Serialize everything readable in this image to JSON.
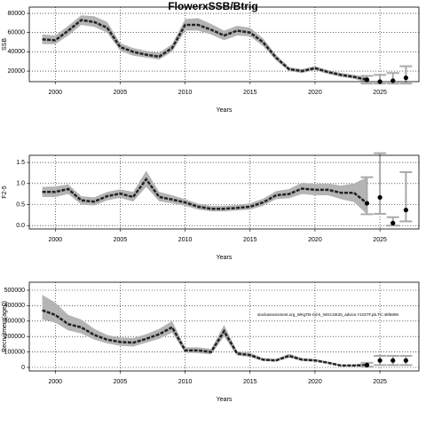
{
  "chart_data": [
    {
      "type": "line",
      "title": "FlowerxSSB/Btrig",
      "xlabel": "Years",
      "ylabel": "SSB",
      "x": [
        1999,
        2000,
        2001,
        2002,
        2003,
        2004,
        2005,
        2006,
        2007,
        2008,
        2009,
        2010,
        2011,
        2012,
        2013,
        2014,
        2015,
        2016,
        2017,
        2018,
        2019,
        2020,
        2021,
        2022,
        2023,
        2024
      ],
      "values": [
        53000,
        52000,
        62000,
        73000,
        71000,
        65000,
        45000,
        40000,
        37000,
        35000,
        44000,
        68000,
        68000,
        63000,
        57000,
        62000,
        60000,
        50000,
        34000,
        22000,
        20000,
        23000,
        19000,
        16000,
        14000,
        11000
      ],
      "band_upper": [
        58000,
        57000,
        67000,
        78000,
        77000,
        71000,
        49000,
        44000,
        41000,
        39000,
        48000,
        74000,
        75000,
        69000,
        62000,
        67000,
        65000,
        54000,
        37000,
        24000,
        22000,
        25000,
        21000,
        18000,
        16000,
        14000
      ],
      "band_lower": [
        48000,
        48000,
        57000,
        68000,
        66000,
        60000,
        41000,
        36000,
        34000,
        32000,
        40000,
        62000,
        62000,
        58000,
        52000,
        57000,
        56000,
        46000,
        31000,
        20000,
        18000,
        21000,
        17000,
        14000,
        12000,
        8000
      ],
      "proj_x": [
        2024,
        2025,
        2026,
        2027
      ],
      "proj_values": [
        11000,
        9000,
        10000,
        13000
      ],
      "proj_lower": [
        7000,
        7000,
        7000,
        7000
      ],
      "proj_upper": [
        15000,
        16000,
        18000,
        25000
      ],
      "xlim": [
        1998,
        2028
      ],
      "xticks": [
        2000,
        2005,
        2010,
        2015,
        2020,
        2025
      ],
      "ylim": [
        9000,
        86500
      ],
      "yticks": [
        20000,
        40000,
        60000,
        80000
      ],
      "grid": true,
      "color": "#222222",
      "band_color": "#b4b4b4",
      "proj_color": "#aaaaaa"
    },
    {
      "type": "line",
      "xlabel": "Years",
      "ylabel": "F2-5",
      "x": [
        1999,
        2000,
        2001,
        2002,
        2003,
        2004,
        2005,
        2006,
        2007,
        2008,
        2009,
        2010,
        2011,
        2012,
        2013,
        2014,
        2015,
        2016,
        2017,
        2018,
        2019,
        2020,
        2021,
        2022,
        2023,
        2024
      ],
      "values": [
        0.8,
        0.8,
        0.87,
        0.6,
        0.57,
        0.7,
        0.76,
        0.68,
        1.1,
        0.68,
        0.62,
        0.55,
        0.45,
        0.4,
        0.4,
        0.42,
        0.45,
        0.55,
        0.72,
        0.75,
        0.88,
        0.85,
        0.85,
        0.78,
        0.78,
        0.53
      ],
      "band_upper": [
        0.92,
        0.93,
        0.98,
        0.7,
        0.67,
        0.8,
        0.86,
        0.8,
        1.3,
        0.8,
        0.72,
        0.63,
        0.52,
        0.47,
        0.47,
        0.49,
        0.53,
        0.64,
        0.82,
        0.87,
        1.02,
        0.99,
        1.0,
        0.95,
        1.0,
        1.15
      ],
      "band_lower": [
        0.68,
        0.68,
        0.75,
        0.5,
        0.48,
        0.6,
        0.66,
        0.57,
        0.92,
        0.58,
        0.53,
        0.47,
        0.38,
        0.34,
        0.34,
        0.36,
        0.38,
        0.47,
        0.63,
        0.65,
        0.75,
        0.72,
        0.72,
        0.63,
        0.56,
        0.27
      ],
      "proj_x": [
        2024,
        2025,
        2026,
        2027
      ],
      "proj_values": [
        0.53,
        0.67,
        0.06,
        0.37
      ],
      "proj_lower": [
        0.27,
        0.28,
        0.0,
        0.1
      ],
      "proj_upper": [
        1.15,
        1.72,
        0.2,
        1.27
      ],
      "xlim": [
        1998,
        2028
      ],
      "xticks": [
        2000,
        2005,
        2010,
        2015,
        2020,
        2025
      ],
      "ylim": [
        -0.08,
        1.67
      ],
      "yticks": [
        {
          "value": 0,
          "label": "0.0"
        },
        0.5,
        {
          "value": 1,
          "label": "1.0"
        },
        1.5
      ],
      "grid": true,
      "color": "#222222",
      "band_color": "#b4b4b4",
      "proj_color": "#aaaaaa"
    },
    {
      "type": "line",
      "xlabel": "Years",
      "ylabel": "Recruitment(age0)",
      "annotation": "stockassessment.org_WKgTB-Cd-k_WGCSE25_advice,Y1027F.pb.TC:45f6808",
      "x": [
        1999,
        2000,
        2001,
        2002,
        2003,
        2004,
        2005,
        2006,
        2007,
        2008,
        2009,
        2010,
        2011,
        2012,
        2013,
        2014,
        2015,
        2016,
        2017,
        2018,
        2019,
        2020,
        2021,
        2022,
        2023,
        2024
      ],
      "values": [
        370000,
        340000,
        280000,
        260000,
        210000,
        180000,
        165000,
        160000,
        185000,
        215000,
        260000,
        110000,
        110000,
        100000,
        235000,
        90000,
        80000,
        50000,
        45000,
        75000,
        50000,
        45000,
        30000,
        12000,
        12000,
        15000
      ],
      "band_upper": [
        470000,
        420000,
        340000,
        310000,
        250000,
        210000,
        195000,
        190000,
        215000,
        250000,
        300000,
        130000,
        130000,
        120000,
        275000,
        105000,
        95000,
        60000,
        55000,
        88000,
        60000,
        55000,
        38000,
        18000,
        20000,
        25000
      ],
      "band_lower": [
        310000,
        290000,
        240000,
        220000,
        180000,
        155000,
        140000,
        135000,
        160000,
        185000,
        225000,
        95000,
        93000,
        85000,
        200000,
        77000,
        68000,
        42000,
        38000,
        64000,
        42000,
        38000,
        24000,
        8000,
        6000,
        7000
      ],
      "proj_x": [
        2024,
        2025,
        2026,
        2027
      ],
      "proj_values": [
        15000,
        45000,
        45000,
        45000
      ],
      "proj_lower": [
        5000,
        15000,
        15000,
        15000
      ],
      "proj_upper": [
        30000,
        75000,
        75000,
        75000
      ],
      "xlim": [
        1998,
        2028
      ],
      "xticks": [
        2000,
        2005,
        2010,
        2015,
        2020,
        2025
      ],
      "ylim": [
        -23000,
        551700
      ],
      "yticks": [
        0,
        100000,
        200000,
        300000,
        400000,
        500000
      ],
      "grid": true,
      "color": "#222222",
      "band_color": "#b4b4b4",
      "proj_color": "#aaaaaa"
    }
  ]
}
